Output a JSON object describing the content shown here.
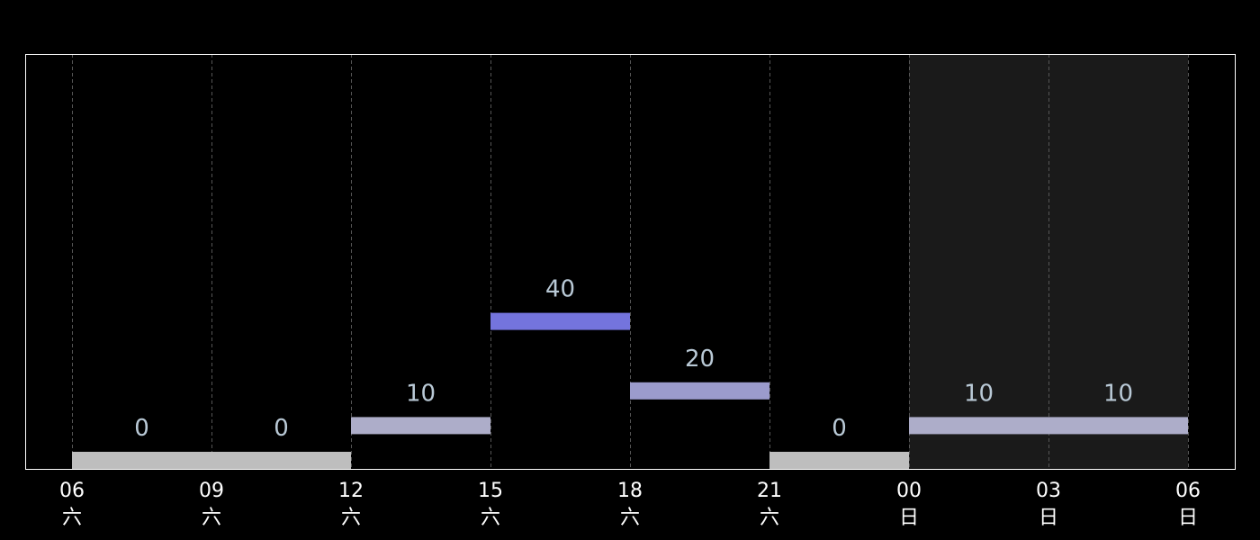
{
  "chart_data": {
    "type": "bar",
    "title": "",
    "xlabel": "",
    "ylabel": "",
    "grid": "vertical-dashed",
    "ylim": [
      0,
      60
    ],
    "tick_labels": [
      {
        "time": "06",
        "day": "六"
      },
      {
        "time": "09",
        "day": "六"
      },
      {
        "time": "12",
        "day": "六"
      },
      {
        "time": "15",
        "day": "六"
      },
      {
        "time": "18",
        "day": "六"
      },
      {
        "time": "21",
        "day": "六"
      },
      {
        "time": "00",
        "day": "日"
      },
      {
        "time": "03",
        "day": "日"
      },
      {
        "time": "06",
        "day": "日"
      }
    ],
    "shaded_ranges": [
      {
        "start_tick": 6,
        "end_tick": 8,
        "color": "#1a1a1a"
      }
    ],
    "bars": [
      {
        "start_tick": 0,
        "end_tick": 1,
        "value": 0,
        "label": "0",
        "color": "#bebebe"
      },
      {
        "start_tick": 1,
        "end_tick": 2,
        "value": 0,
        "label": "0",
        "color": "#bebebe"
      },
      {
        "start_tick": 2,
        "end_tick": 3,
        "value": 10,
        "label": "10",
        "color": "#adadc9"
      },
      {
        "start_tick": 3,
        "end_tick": 4,
        "value": 40,
        "label": "40",
        "color": "#7474dd"
      },
      {
        "start_tick": 4,
        "end_tick": 5,
        "value": 20,
        "label": "20",
        "color": "#9b9bcc"
      },
      {
        "start_tick": 5,
        "end_tick": 6,
        "value": 0,
        "label": "0",
        "color": "#bebebe"
      },
      {
        "start_tick": 6,
        "end_tick": 7,
        "value": 10,
        "label": "10",
        "color": "#adadc9"
      },
      {
        "start_tick": 7,
        "end_tick": 8,
        "value": 10,
        "label": "10",
        "color": "#adadc9"
      }
    ],
    "colors": {
      "background": "#000000",
      "frame": "#ffffff",
      "grid": "#555555",
      "value_label": "#b9c9d6",
      "tick_label": "#ffffff"
    }
  }
}
